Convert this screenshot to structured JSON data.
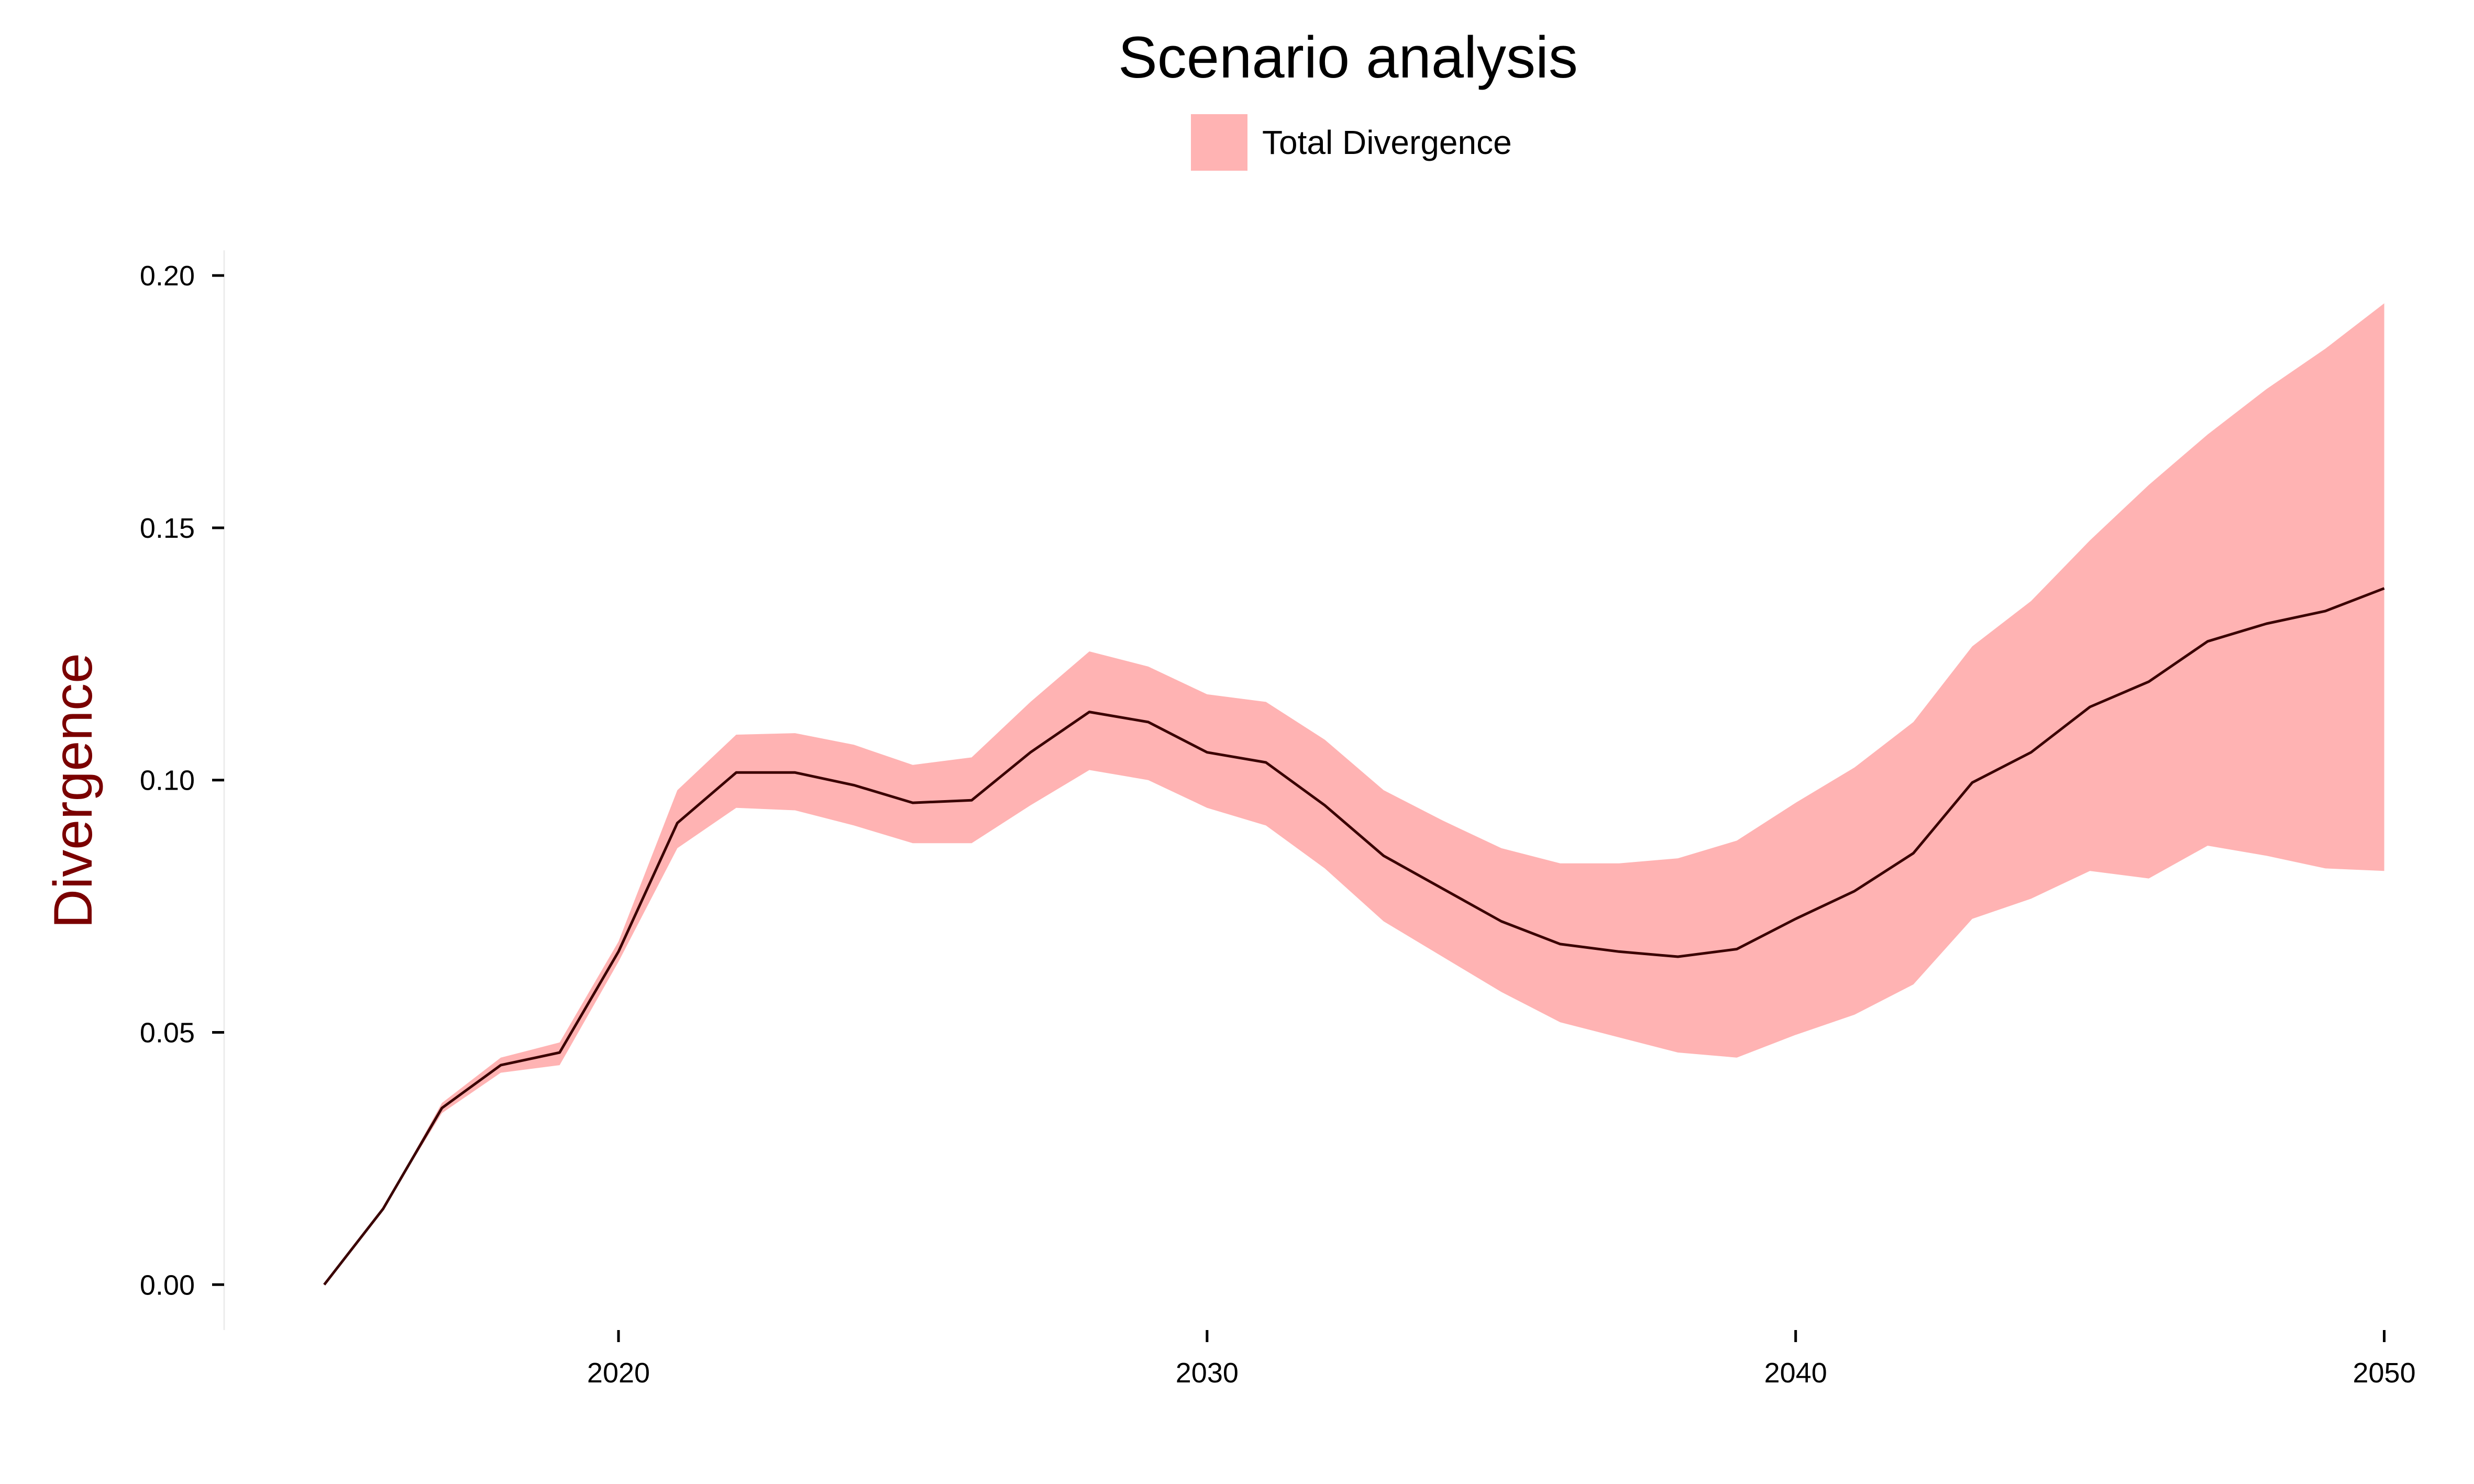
{
  "chart_data": {
    "type": "area",
    "title": "Scenario analysis",
    "xlabel": "",
    "ylabel": "Divergence",
    "xlim": [
      2013.3,
      2050.6
    ],
    "ylim": [
      -0.009,
      0.205
    ],
    "x_ticks": [
      2020,
      2030,
      2040,
      2050
    ],
    "x_tick_labels": [
      "2020",
      "2030",
      "2040",
      "2050"
    ],
    "y_ticks": [
      0.0,
      0.05,
      0.1,
      0.15,
      0.2
    ],
    "y_tick_labels": [
      "0.00",
      "0.05",
      "0.10",
      "0.15",
      "0.20"
    ],
    "grid": false,
    "legend": {
      "placement": "top-center",
      "entries": [
        {
          "label": "Total Divergence",
          "color": "#ffb3b3"
        }
      ]
    },
    "colors": {
      "band": "#ffb3b3",
      "line": "#3a0000",
      "ylabel": "#7a0000"
    },
    "x": [
      2015,
      2016,
      2017,
      2018,
      2019,
      2020,
      2021,
      2022,
      2023,
      2024,
      2025,
      2026,
      2027,
      2028,
      2029,
      2030,
      2031,
      2032,
      2033,
      2034,
      2035,
      2036,
      2037,
      2038,
      2039,
      2040,
      2041,
      2042,
      2043,
      2044,
      2045,
      2046,
      2047,
      2048,
      2049,
      2050
    ],
    "series": [
      {
        "name": "Total Divergence",
        "kind": "band",
        "upper": [
          0.0,
          0.015,
          0.036,
          0.045,
          0.048,
          0.068,
          0.098,
          0.109,
          0.1093,
          0.107,
          0.103,
          0.1045,
          0.1155,
          0.1255,
          0.1225,
          0.117,
          0.1155,
          0.108,
          0.098,
          0.092,
          0.0865,
          0.0835,
          0.0835,
          0.0845,
          0.088,
          0.0955,
          0.1025,
          0.1115,
          0.1265,
          0.1355,
          0.1475,
          0.1585,
          0.1685,
          0.1775,
          0.1855,
          0.1945
        ],
        "lower": [
          0.0,
          0.015,
          0.034,
          0.042,
          0.0435,
          0.064,
          0.0865,
          0.0945,
          0.094,
          0.091,
          0.0875,
          0.0875,
          0.095,
          0.102,
          0.1,
          0.0945,
          0.091,
          0.0825,
          0.072,
          0.065,
          0.058,
          0.052,
          0.049,
          0.046,
          0.045,
          0.0495,
          0.0535,
          0.0595,
          0.0725,
          0.0765,
          0.082,
          0.0805,
          0.087,
          0.085,
          0.0825,
          0.082
        ]
      },
      {
        "name": "",
        "kind": "line",
        "values": [
          0.0,
          0.015,
          0.035,
          0.0435,
          0.046,
          0.066,
          0.0915,
          0.1015,
          0.1015,
          0.099,
          0.0955,
          0.096,
          0.1055,
          0.1135,
          0.1115,
          0.1055,
          0.1035,
          0.095,
          0.085,
          0.0785,
          0.072,
          0.0675,
          0.066,
          0.065,
          0.0665,
          0.0725,
          0.078,
          0.0855,
          0.0995,
          0.1055,
          0.1145,
          0.1195,
          0.1275,
          0.131,
          0.1335,
          0.138
        ]
      }
    ]
  }
}
